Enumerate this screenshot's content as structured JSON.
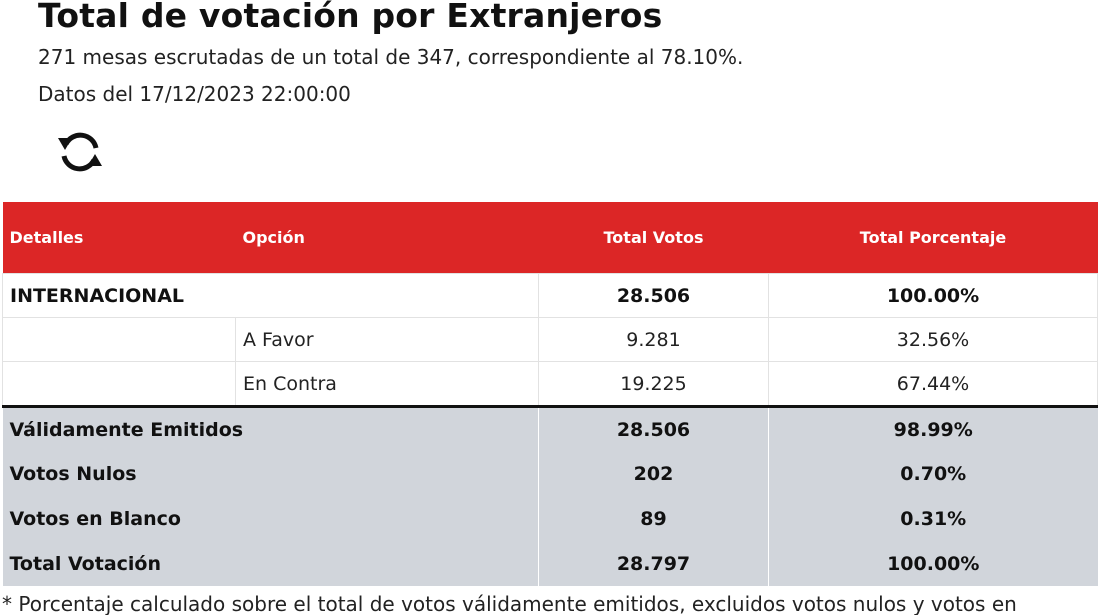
{
  "header": {
    "title": "Total de votación por Extranjeros",
    "summary": "271 mesas escrutadas de un total de 347, correspondiente al 78.10%.",
    "date": "Datos del 17/12/2023 22:00:00",
    "refresh_icon": "refresh-icon"
  },
  "table": {
    "columns": [
      "Detalles",
      "Opción",
      "Total Votos",
      "Total Porcentaje"
    ],
    "region": {
      "name": "INTERNACIONAL",
      "votes": "28.506",
      "percent": "100.00%"
    },
    "options": [
      {
        "label": "A Favor",
        "votes": "9.281",
        "percent": "32.56%"
      },
      {
        "label": "En Contra",
        "votes": "19.225",
        "percent": "67.44%"
      }
    ],
    "totals": [
      {
        "label": "Válidamente Emitidos",
        "votes": "28.506",
        "percent": "98.99%"
      },
      {
        "label": "Votos Nulos",
        "votes": "202",
        "percent": "0.70%"
      },
      {
        "label": "Votos en Blanco",
        "votes": "89",
        "percent": "0.31%"
      },
      {
        "label": "Total Votación",
        "votes": "28.797",
        "percent": "100.00%"
      }
    ]
  },
  "footnote": "* Porcentaje calculado sobre el total de votos válidamente emitidos, excluidos votos nulos y votos en",
  "colors": {
    "header_bg": "#dc2626",
    "totals_bg": "#d1d5db"
  }
}
